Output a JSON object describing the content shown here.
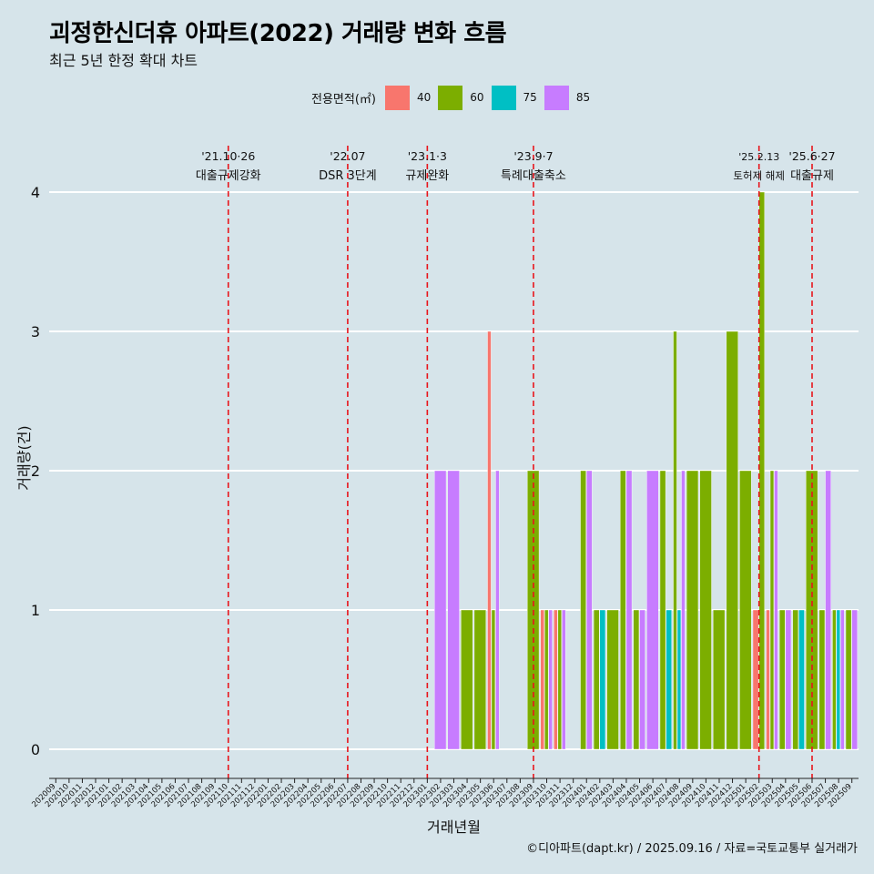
{
  "title": "괴정한신더휴 아파트(2022) 거래량 변화 흐름",
  "subtitle": "최근 5년 한정 확대 차트",
  "caption": "©디아파트(dapt.kr) / 2025.09.16 / 자료=국토교통부 실거래가",
  "legend": {
    "title": "전용면적(㎡)",
    "items": [
      {
        "label": "40",
        "color": "#F8766D"
      },
      {
        "label": "60",
        "color": "#7CAE00"
      },
      {
        "label": "75",
        "color": "#00BFC4"
      },
      {
        "label": "85",
        "color": "#C77CFF"
      }
    ]
  },
  "chart_data": {
    "type": "bar",
    "title": "괴정한신더휴 아파트(2022) 거래량 변화 흐름",
    "subtitle": "최근 5년 한정 확대 차트",
    "xlabel": "거래년월",
    "ylabel": "거래량(건)",
    "ylim": [
      0,
      4
    ],
    "yticks": [
      0,
      1,
      2,
      3,
      4
    ],
    "grid": true,
    "legend_position": "top",
    "categories": [
      "202009",
      "202010",
      "202011",
      "202012",
      "202101",
      "202102",
      "202103",
      "202104",
      "202105",
      "202106",
      "202107",
      "202108",
      "202109",
      "202110",
      "202111",
      "202112",
      "202201",
      "202202",
      "202203",
      "202204",
      "202205",
      "202206",
      "202207",
      "202208",
      "202209",
      "202210",
      "202211",
      "202212",
      "202301",
      "202302",
      "202303",
      "202304",
      "202305",
      "202306",
      "202307",
      "202308",
      "202309",
      "202310",
      "202311",
      "202312",
      "202401",
      "202402",
      "202403",
      "202404",
      "202405",
      "202406",
      "202407",
      "202408",
      "202409",
      "202410",
      "202411",
      "202412",
      "202501",
      "202502",
      "202503",
      "202504",
      "202505",
      "202506",
      "202507",
      "202508",
      "202509"
    ],
    "series": [
      {
        "name": "40",
        "color": "#F8766D",
        "values": [
          0,
          0,
          0,
          0,
          0,
          0,
          0,
          0,
          0,
          0,
          0,
          0,
          0,
          0,
          0,
          0,
          0,
          0,
          0,
          0,
          0,
          0,
          0,
          0,
          0,
          0,
          0,
          0,
          0,
          0,
          0,
          0,
          0,
          3,
          0,
          0,
          0,
          1,
          1,
          0,
          0,
          0,
          0,
          0,
          0,
          0,
          0,
          0,
          0,
          0,
          0,
          0,
          0,
          1,
          1,
          0,
          0,
          0,
          0,
          0,
          0
        ]
      },
      {
        "name": "60",
        "color": "#7CAE00",
        "values": [
          0,
          0,
          0,
          0,
          0,
          0,
          0,
          0,
          0,
          0,
          0,
          0,
          0,
          0,
          0,
          0,
          0,
          0,
          0,
          0,
          0,
          0,
          0,
          0,
          0,
          0,
          0,
          0,
          0,
          0,
          0,
          1,
          1,
          1,
          0,
          0,
          2,
          1,
          1,
          0,
          2,
          1,
          1,
          2,
          1,
          0,
          2,
          3,
          2,
          2,
          1,
          3,
          2,
          4,
          2,
          1,
          1,
          2,
          1,
          1,
          1
        ]
      },
      {
        "name": "75",
        "color": "#00BFC4",
        "values": [
          0,
          0,
          0,
          0,
          0,
          0,
          0,
          0,
          0,
          0,
          0,
          0,
          0,
          0,
          0,
          0,
          0,
          0,
          0,
          0,
          0,
          0,
          0,
          0,
          0,
          0,
          0,
          0,
          0,
          0,
          0,
          0,
          0,
          0,
          0,
          0,
          0,
          0,
          0,
          0,
          0,
          1,
          0,
          0,
          0,
          0,
          1,
          1,
          0,
          0,
          0,
          0,
          0,
          0,
          0,
          0,
          1,
          0,
          0,
          1,
          0
        ]
      },
      {
        "name": "85",
        "color": "#C77CFF",
        "values": [
          0,
          0,
          0,
          0,
          0,
          0,
          0,
          0,
          0,
          0,
          0,
          0,
          0,
          0,
          0,
          0,
          0,
          0,
          0,
          0,
          0,
          0,
          0,
          0,
          0,
          0,
          0,
          0,
          0,
          2,
          2,
          0,
          0,
          2,
          0,
          0,
          0,
          1,
          1,
          0,
          2,
          0,
          0,
          2,
          1,
          2,
          0,
          2,
          0,
          0,
          0,
          0,
          0,
          0,
          2,
          1,
          0,
          0,
          2,
          1,
          1
        ]
      }
    ],
    "annotations": [
      {
        "x": "202110",
        "date": "'21.10·26",
        "label": "대출규제강화"
      },
      {
        "x": "202207",
        "date": "'22.07",
        "label": "DSR 3단계"
      },
      {
        "x": "202301",
        "date": "'23.1·3",
        "label": "규제완화"
      },
      {
        "x": "202309",
        "date": "'23.9·7",
        "label": "특례대출축소"
      },
      {
        "x": "202502",
        "date": "'25.2.13",
        "label": "토허제 해제"
      },
      {
        "x": "202506",
        "date": "'25.6·27",
        "label": "대출규제"
      }
    ]
  }
}
